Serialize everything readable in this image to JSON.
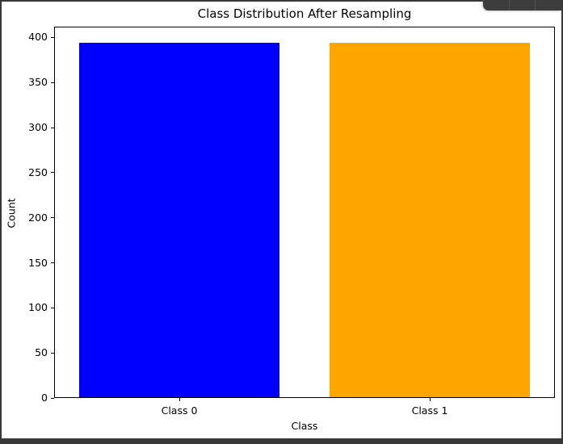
{
  "window": {
    "frame_color": "#373737",
    "figure_background": "#ffffff"
  },
  "toolbar": {
    "description": "dark hover toolbar, buttons cut off at top edge"
  },
  "chart_data": {
    "type": "bar",
    "title": "Class Distribution After Resampling",
    "xlabel": "Class",
    "ylabel": "Count",
    "categories": [
      "Class 0",
      "Class 1"
    ],
    "values": [
      394,
      394
    ],
    "bar_colors": [
      "#0000ff",
      "#ffa500"
    ],
    "yticks": [
      0,
      50,
      100,
      150,
      200,
      250,
      300,
      350,
      400
    ],
    "ylim": [
      0,
      412
    ],
    "grid": false,
    "legend": "none",
    "spine_color": "#000000"
  }
}
